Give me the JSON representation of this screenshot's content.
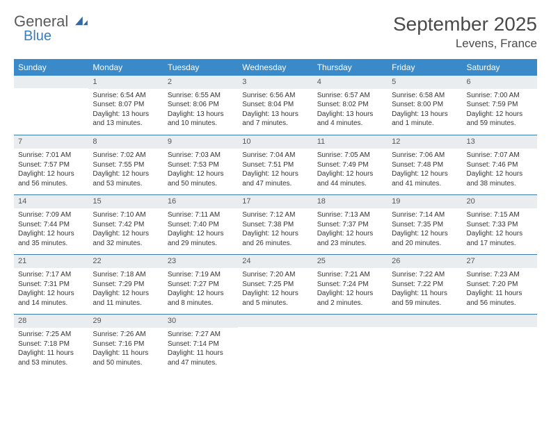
{
  "brand": {
    "line1": "General",
    "line2": "Blue"
  },
  "title": "September 2025",
  "location": "Levens, France",
  "colors": {
    "header_bg": "#3a8ac9",
    "header_text": "#ffffff",
    "daynum_bg": "#e9edf0",
    "rule": "#3a7bb0",
    "logo_blue": "#3a7bbf",
    "text": "#333333"
  },
  "day_headers": [
    "Sunday",
    "Monday",
    "Tuesday",
    "Wednesday",
    "Thursday",
    "Friday",
    "Saturday"
  ],
  "weeks": [
    [
      {
        "n": "",
        "sunrise": "",
        "sunset": "",
        "daylight": ""
      },
      {
        "n": "1",
        "sunrise": "Sunrise: 6:54 AM",
        "sunset": "Sunset: 8:07 PM",
        "daylight": "Daylight: 13 hours and 13 minutes."
      },
      {
        "n": "2",
        "sunrise": "Sunrise: 6:55 AM",
        "sunset": "Sunset: 8:06 PM",
        "daylight": "Daylight: 13 hours and 10 minutes."
      },
      {
        "n": "3",
        "sunrise": "Sunrise: 6:56 AM",
        "sunset": "Sunset: 8:04 PM",
        "daylight": "Daylight: 13 hours and 7 minutes."
      },
      {
        "n": "4",
        "sunrise": "Sunrise: 6:57 AM",
        "sunset": "Sunset: 8:02 PM",
        "daylight": "Daylight: 13 hours and 4 minutes."
      },
      {
        "n": "5",
        "sunrise": "Sunrise: 6:58 AM",
        "sunset": "Sunset: 8:00 PM",
        "daylight": "Daylight: 13 hours and 1 minute."
      },
      {
        "n": "6",
        "sunrise": "Sunrise: 7:00 AM",
        "sunset": "Sunset: 7:59 PM",
        "daylight": "Daylight: 12 hours and 59 minutes."
      }
    ],
    [
      {
        "n": "7",
        "sunrise": "Sunrise: 7:01 AM",
        "sunset": "Sunset: 7:57 PM",
        "daylight": "Daylight: 12 hours and 56 minutes."
      },
      {
        "n": "8",
        "sunrise": "Sunrise: 7:02 AM",
        "sunset": "Sunset: 7:55 PM",
        "daylight": "Daylight: 12 hours and 53 minutes."
      },
      {
        "n": "9",
        "sunrise": "Sunrise: 7:03 AM",
        "sunset": "Sunset: 7:53 PM",
        "daylight": "Daylight: 12 hours and 50 minutes."
      },
      {
        "n": "10",
        "sunrise": "Sunrise: 7:04 AM",
        "sunset": "Sunset: 7:51 PM",
        "daylight": "Daylight: 12 hours and 47 minutes."
      },
      {
        "n": "11",
        "sunrise": "Sunrise: 7:05 AM",
        "sunset": "Sunset: 7:49 PM",
        "daylight": "Daylight: 12 hours and 44 minutes."
      },
      {
        "n": "12",
        "sunrise": "Sunrise: 7:06 AM",
        "sunset": "Sunset: 7:48 PM",
        "daylight": "Daylight: 12 hours and 41 minutes."
      },
      {
        "n": "13",
        "sunrise": "Sunrise: 7:07 AM",
        "sunset": "Sunset: 7:46 PM",
        "daylight": "Daylight: 12 hours and 38 minutes."
      }
    ],
    [
      {
        "n": "14",
        "sunrise": "Sunrise: 7:09 AM",
        "sunset": "Sunset: 7:44 PM",
        "daylight": "Daylight: 12 hours and 35 minutes."
      },
      {
        "n": "15",
        "sunrise": "Sunrise: 7:10 AM",
        "sunset": "Sunset: 7:42 PM",
        "daylight": "Daylight: 12 hours and 32 minutes."
      },
      {
        "n": "16",
        "sunrise": "Sunrise: 7:11 AM",
        "sunset": "Sunset: 7:40 PM",
        "daylight": "Daylight: 12 hours and 29 minutes."
      },
      {
        "n": "17",
        "sunrise": "Sunrise: 7:12 AM",
        "sunset": "Sunset: 7:38 PM",
        "daylight": "Daylight: 12 hours and 26 minutes."
      },
      {
        "n": "18",
        "sunrise": "Sunrise: 7:13 AM",
        "sunset": "Sunset: 7:37 PM",
        "daylight": "Daylight: 12 hours and 23 minutes."
      },
      {
        "n": "19",
        "sunrise": "Sunrise: 7:14 AM",
        "sunset": "Sunset: 7:35 PM",
        "daylight": "Daylight: 12 hours and 20 minutes."
      },
      {
        "n": "20",
        "sunrise": "Sunrise: 7:15 AM",
        "sunset": "Sunset: 7:33 PM",
        "daylight": "Daylight: 12 hours and 17 minutes."
      }
    ],
    [
      {
        "n": "21",
        "sunrise": "Sunrise: 7:17 AM",
        "sunset": "Sunset: 7:31 PM",
        "daylight": "Daylight: 12 hours and 14 minutes."
      },
      {
        "n": "22",
        "sunrise": "Sunrise: 7:18 AM",
        "sunset": "Sunset: 7:29 PM",
        "daylight": "Daylight: 12 hours and 11 minutes."
      },
      {
        "n": "23",
        "sunrise": "Sunrise: 7:19 AM",
        "sunset": "Sunset: 7:27 PM",
        "daylight": "Daylight: 12 hours and 8 minutes."
      },
      {
        "n": "24",
        "sunrise": "Sunrise: 7:20 AM",
        "sunset": "Sunset: 7:25 PM",
        "daylight": "Daylight: 12 hours and 5 minutes."
      },
      {
        "n": "25",
        "sunrise": "Sunrise: 7:21 AM",
        "sunset": "Sunset: 7:24 PM",
        "daylight": "Daylight: 12 hours and 2 minutes."
      },
      {
        "n": "26",
        "sunrise": "Sunrise: 7:22 AM",
        "sunset": "Sunset: 7:22 PM",
        "daylight": "Daylight: 11 hours and 59 minutes."
      },
      {
        "n": "27",
        "sunrise": "Sunrise: 7:23 AM",
        "sunset": "Sunset: 7:20 PM",
        "daylight": "Daylight: 11 hours and 56 minutes."
      }
    ],
    [
      {
        "n": "28",
        "sunrise": "Sunrise: 7:25 AM",
        "sunset": "Sunset: 7:18 PM",
        "daylight": "Daylight: 11 hours and 53 minutes."
      },
      {
        "n": "29",
        "sunrise": "Sunrise: 7:26 AM",
        "sunset": "Sunset: 7:16 PM",
        "daylight": "Daylight: 11 hours and 50 minutes."
      },
      {
        "n": "30",
        "sunrise": "Sunrise: 7:27 AM",
        "sunset": "Sunset: 7:14 PM",
        "daylight": "Daylight: 11 hours and 47 minutes."
      },
      {
        "n": "",
        "sunrise": "",
        "sunset": "",
        "daylight": ""
      },
      {
        "n": "",
        "sunrise": "",
        "sunset": "",
        "daylight": ""
      },
      {
        "n": "",
        "sunrise": "",
        "sunset": "",
        "daylight": ""
      },
      {
        "n": "",
        "sunrise": "",
        "sunset": "",
        "daylight": ""
      }
    ]
  ]
}
